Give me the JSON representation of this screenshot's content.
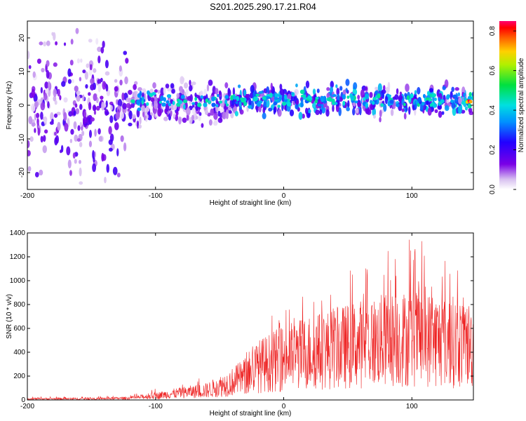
{
  "page": {
    "title": "S201.2025.290.17.21.R04"
  },
  "colors": {
    "snr_line": "#ee2222",
    "axis": "#000000",
    "background": "#ffffff"
  },
  "chart_data": [
    {
      "type": "heatmap",
      "title": "S201.2025.290.17.21.R04",
      "xlabel": "Height of straight line (km)",
      "ylabel": "Frequency (Hz)",
      "xlim": [
        -200,
        148
      ],
      "ylim": [
        -25,
        25
      ],
      "xticks": [
        -200,
        -100,
        0,
        100
      ],
      "yticks": [
        -20,
        -10,
        0,
        10,
        20
      ],
      "colorbar": {
        "label": "Normalized spectral amplitude",
        "range": [
          0.0,
          0.85
        ],
        "ticks": [
          0.0,
          0.2,
          0.4,
          0.6,
          0.8
        ],
        "colormap": "rainbow (violet to red)"
      },
      "bands": [
        {
          "x_range": [
            -200,
            -122
          ],
          "center_hz": 0,
          "half_width_hz": 25,
          "typical_amplitude": 0.15,
          "description": "noise spread over full frequency range"
        },
        {
          "x_range": [
            -122,
            -40
          ],
          "center_hz": 0,
          "half_width_hz": 8,
          "typical_amplitude": 0.15
        },
        {
          "x_range": [
            -40,
            148
          ],
          "center_hz": 1.5,
          "half_width_hz": 6,
          "typical_amplitude": 0.3
        }
      ],
      "peaks": [
        {
          "x": 20,
          "y": 2,
          "amplitude": 0.5
        },
        {
          "x": 145,
          "y": 1,
          "amplitude": 0.85
        }
      ]
    },
    {
      "type": "line",
      "xlabel": "Height of straight line (km)",
      "ylabel": "SNR (10 * v/v)",
      "xlim": [
        -200,
        148
      ],
      "ylim": [
        0,
        1400
      ],
      "xticks": [
        -200,
        -100,
        0,
        100
      ],
      "yticks": [
        0,
        200,
        400,
        600,
        800,
        1000,
        1200,
        1400
      ],
      "series": [
        {
          "color": "#ee2222",
          "envelope": {
            "x": [
              -200,
              -150,
              -120,
              -100,
              -80,
              -60,
              -40,
              -30,
              -20,
              0,
              20,
              40,
              60,
              80,
              100,
              120,
              140,
              148
            ],
            "y_max": [
              30,
              30,
              40,
              100,
              150,
              200,
              300,
              480,
              600,
              800,
              920,
              1050,
              1150,
              1300,
              1400,
              1300,
              1100,
              800
            ],
            "y_typical": [
              10,
              10,
              15,
              35,
              60,
              80,
              150,
              200,
              280,
              350,
              400,
              430,
              470,
              500,
              520,
              500,
              480,
              450
            ]
          }
        }
      ]
    }
  ]
}
